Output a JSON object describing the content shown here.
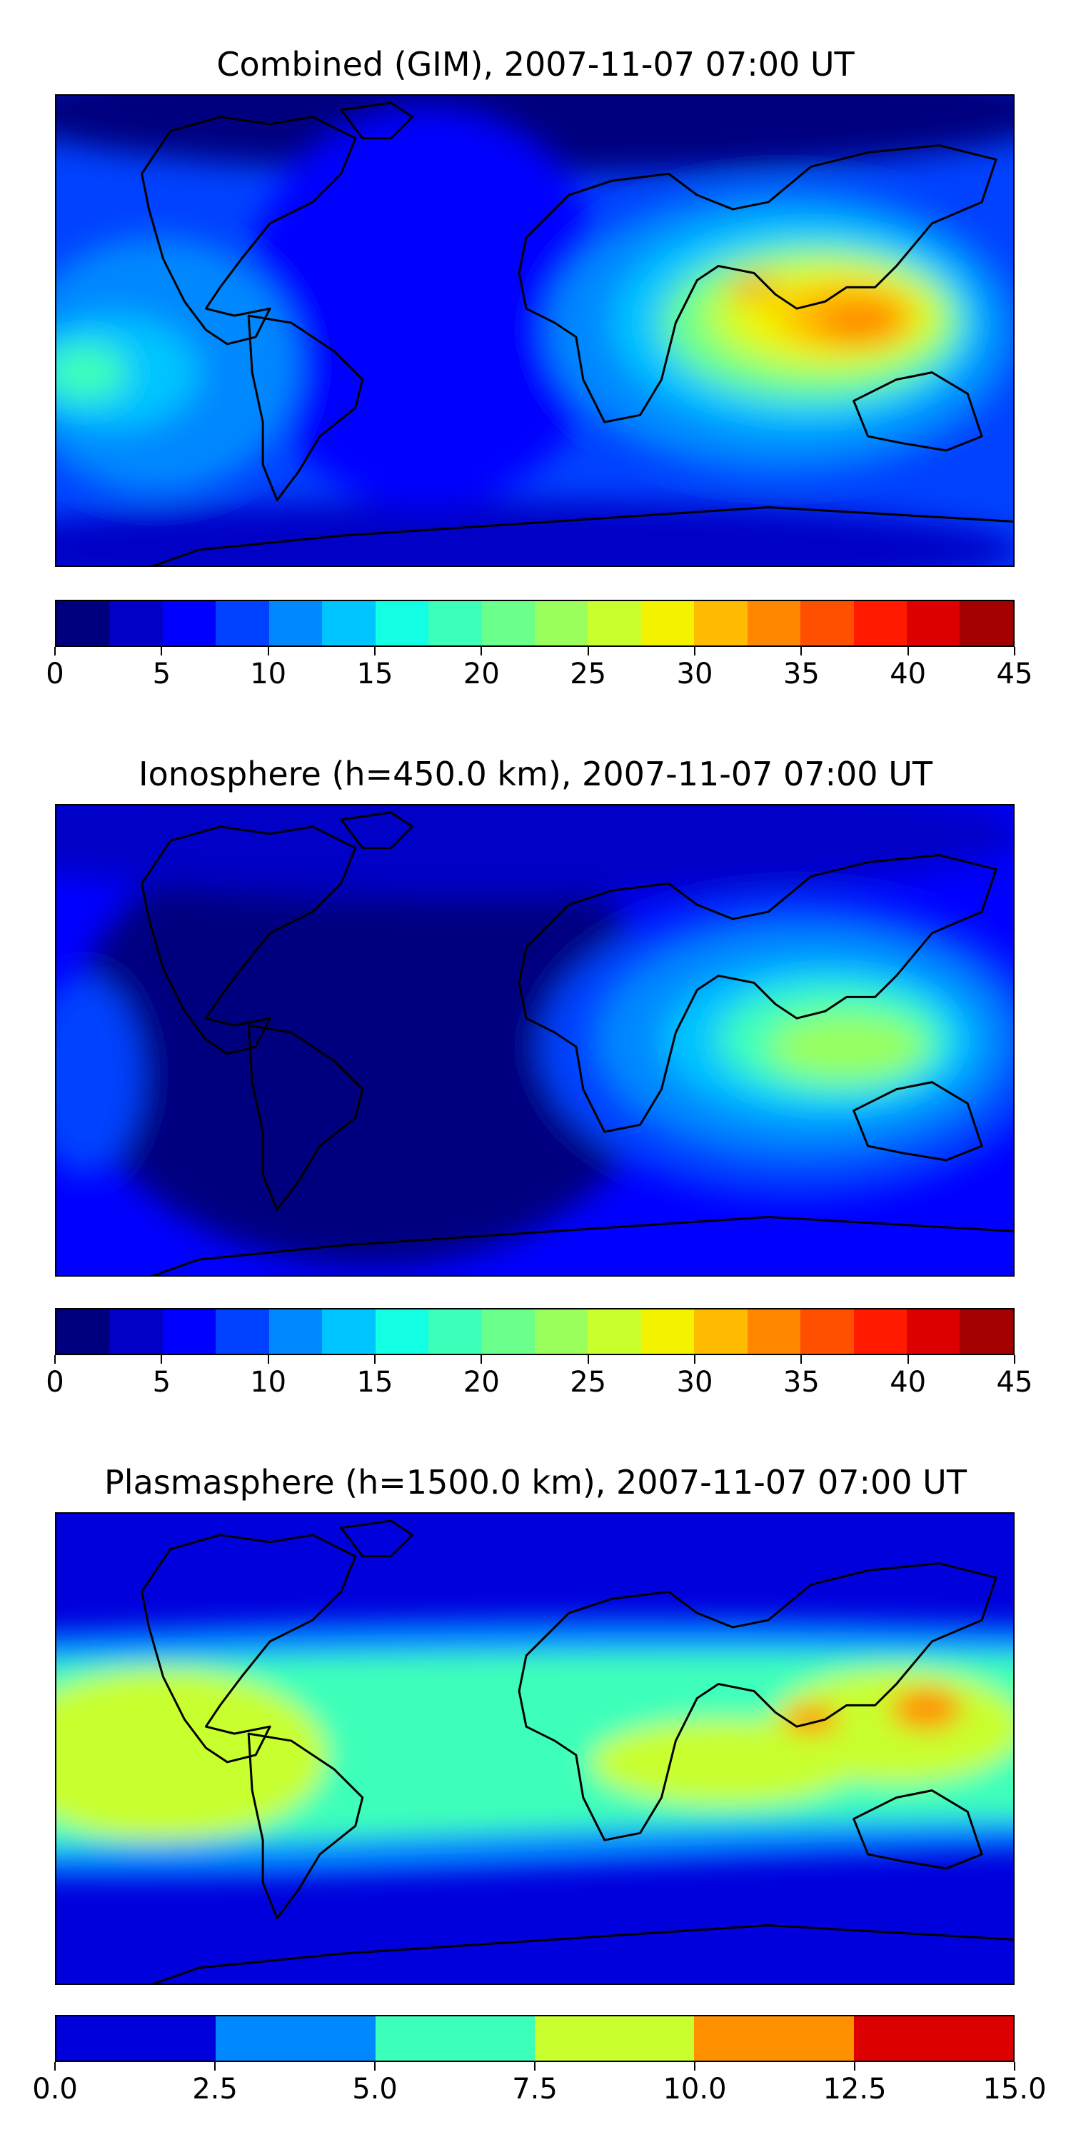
{
  "panels": [
    {
      "title": "Combined (GIM), 2007-11-07 07:00 UT",
      "colorbar": {
        "colors": [
          "#00007f",
          "#0000c6",
          "#0000ff",
          "#0042ff",
          "#0088ff",
          "#00c4ff",
          "#13ffe3",
          "#3cffba",
          "#6bff8b",
          "#9aff5c",
          "#c8ff2d",
          "#f3f300",
          "#ffbb00",
          "#ff8700",
          "#ff5000",
          "#ff1a00",
          "#dd0000",
          "#a30000"
        ],
        "ticks": [
          "0",
          "5",
          "10",
          "15",
          "20",
          "25",
          "30",
          "35",
          "40",
          "45"
        ],
        "range": [
          0,
          45
        ]
      }
    },
    {
      "title": "Ionosphere  (h=450.0 km), 2007-11-07 07:00 UT",
      "colorbar": {
        "colors": [
          "#00007f",
          "#0000c6",
          "#0000ff",
          "#0042ff",
          "#0088ff",
          "#00c4ff",
          "#13ffe3",
          "#3cffba",
          "#6bff8b",
          "#9aff5c",
          "#c8ff2d",
          "#f3f300",
          "#ffbb00",
          "#ff8700",
          "#ff5000",
          "#ff1a00",
          "#dd0000",
          "#a30000"
        ],
        "ticks": [
          "0",
          "5",
          "10",
          "15",
          "20",
          "25",
          "30",
          "35",
          "40",
          "45"
        ],
        "range": [
          0,
          45
        ]
      }
    },
    {
      "title": "Plasmasphere (h=1500.0 km), 2007-11-07 07:00 UT",
      "colorbar": {
        "colors": [
          "#0000dd",
          "#0088ff",
          "#3cffba",
          "#c8ff2d",
          "#ff9100",
          "#dd0000"
        ],
        "ticks": [
          "0.0",
          "2.5",
          "5.0",
          "7.5",
          "10.0",
          "12.5",
          "15.0"
        ],
        "range": [
          0,
          15
        ]
      }
    }
  ]
}
